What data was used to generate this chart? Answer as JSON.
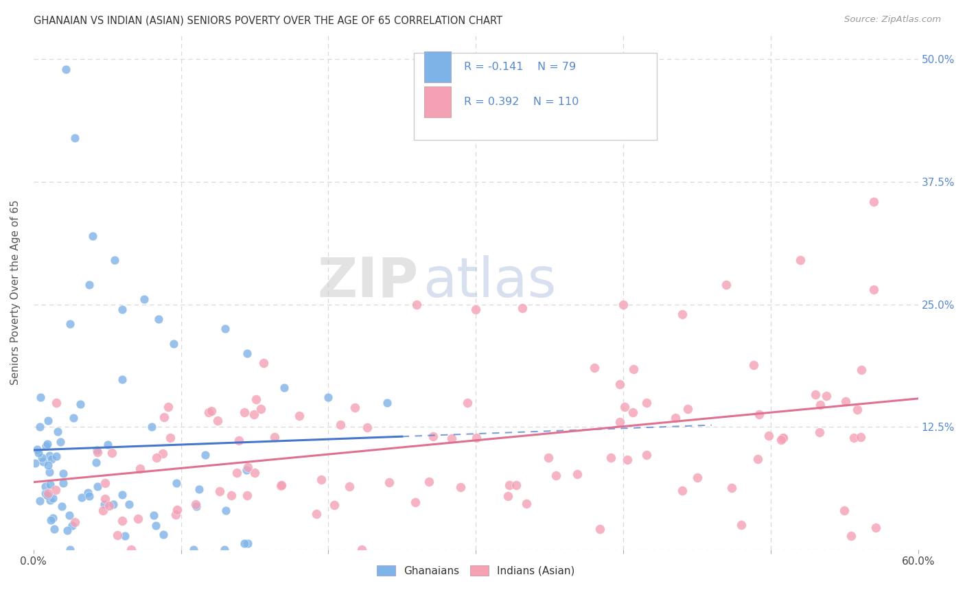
{
  "title": "GHANAIAN VS INDIAN (ASIAN) SENIORS POVERTY OVER THE AGE OF 65 CORRELATION CHART",
  "source": "Source: ZipAtlas.com",
  "ylabel": "Seniors Poverty Over the Age of 65",
  "xlim": [
    0.0,
    0.6
  ],
  "ylim": [
    0.0,
    0.525
  ],
  "xticks": [
    0.0,
    0.1,
    0.2,
    0.3,
    0.4,
    0.5,
    0.6
  ],
  "ytick_positions": [
    0.0,
    0.125,
    0.25,
    0.375,
    0.5
  ],
  "ytick_labels_right": [
    "",
    "12.5%",
    "25.0%",
    "37.5%",
    "50.0%"
  ],
  "ghanaian_color": "#7EB3E8",
  "ghanaian_line_color": "#4477CC",
  "indian_color": "#F4A0B5",
  "indian_line_color": "#E07090",
  "ghanaian_R": -0.141,
  "ghanaian_N": 79,
  "indian_R": 0.392,
  "indian_N": 110,
  "legend_label1": "Ghanaians",
  "legend_label2": "Indians (Asian)",
  "watermark_zip": "ZIP",
  "watermark_atlas": "atlas",
  "background_color": "#ffffff",
  "grid_color": "#d8d8d8",
  "title_color": "#333333",
  "axis_label_color": "#555555",
  "right_tick_color": "#5588cc",
  "legend_text_color": "#5588cc"
}
